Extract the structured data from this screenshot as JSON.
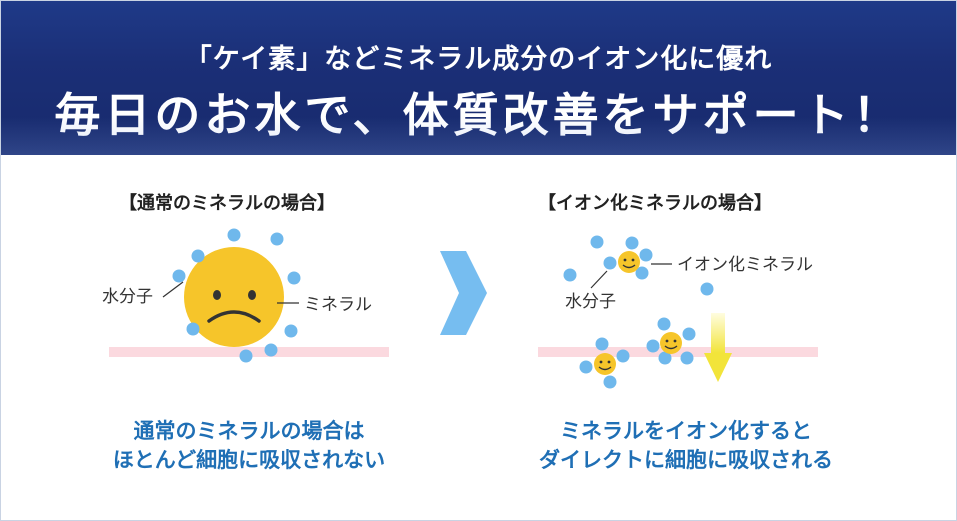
{
  "header": {
    "subtitle": "「ケイ素」などミネラル成分のイオン化に優れ",
    "title": "毎日のお水で、体質改善をサポート！"
  },
  "left_panel": {
    "heading": "【通常のミネラルの場合】",
    "water_label": "水分子",
    "mineral_label": "ミネラル",
    "caption_line1": "通常のミネラルの場合は",
    "caption_line2": "ほとんど細胞に吸収されない"
  },
  "right_panel": {
    "heading": "【イオン化ミネラルの場合】",
    "ion_label": "イオン化ミネラル",
    "water_label": "水分子",
    "caption_line1": "ミネラルをイオン化すると",
    "caption_line2": "ダイレクトに細胞に吸収される"
  },
  "colors": {
    "header_bg": "#1b2f77",
    "caption_text": "#1f6fb5",
    "water_molecule": "#6fb8ec",
    "mineral": "#f6c52a",
    "cell_membrane": "#fbd9df",
    "arrow_blue": "#76bdf0",
    "arrow_yellow": "#f5e94a"
  }
}
